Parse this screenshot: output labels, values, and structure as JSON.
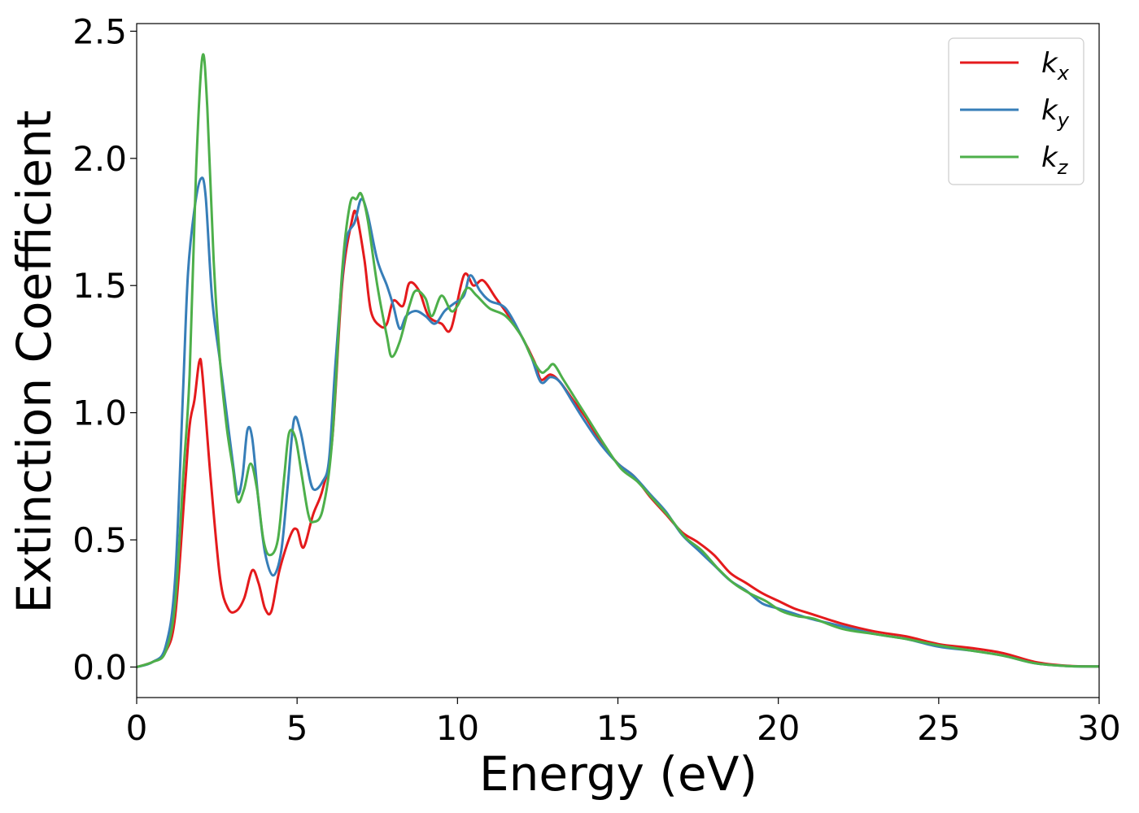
{
  "chart_data": {
    "type": "line",
    "xlabel": "Energy (eV)",
    "ylabel": "Extinction Coefficient",
    "xlim": [
      0,
      30
    ],
    "ylim": [
      -0.12,
      2.53
    ],
    "xticks": [
      0,
      5,
      10,
      15,
      20,
      25,
      30
    ],
    "yticks": [
      0.0,
      0.5,
      1.0,
      1.5,
      2.0,
      2.5
    ],
    "xtick_labels": [
      "0",
      "5",
      "10",
      "15",
      "20",
      "25",
      "30"
    ],
    "ytick_labels": [
      "0.0",
      "0.5",
      "1.0",
      "1.5",
      "2.0",
      "2.5"
    ],
    "grid": false,
    "legend_position": "top-right",
    "series": [
      {
        "name": "k_x",
        "label_main": "k",
        "label_sub": "x",
        "color": "#e41a1c",
        "points": [
          [
            0,
            0
          ],
          [
            0.5,
            0.02
          ],
          [
            0.9,
            0.06
          ],
          [
            1.2,
            0.2
          ],
          [
            1.5,
            0.7
          ],
          [
            1.65,
            0.95
          ],
          [
            1.8,
            1.05
          ],
          [
            1.95,
            1.2
          ],
          [
            2.05,
            1.15
          ],
          [
            2.3,
            0.75
          ],
          [
            2.6,
            0.35
          ],
          [
            2.85,
            0.23
          ],
          [
            3.1,
            0.22
          ],
          [
            3.35,
            0.27
          ],
          [
            3.6,
            0.38
          ],
          [
            3.8,
            0.33
          ],
          [
            4.0,
            0.23
          ],
          [
            4.2,
            0.22
          ],
          [
            4.45,
            0.38
          ],
          [
            4.8,
            0.52
          ],
          [
            5.0,
            0.54
          ],
          [
            5.2,
            0.47
          ],
          [
            5.5,
            0.6
          ],
          [
            5.8,
            0.7
          ],
          [
            6.1,
            0.9
          ],
          [
            6.4,
            1.5
          ],
          [
            6.7,
            1.75
          ],
          [
            6.85,
            1.78
          ],
          [
            7.1,
            1.6
          ],
          [
            7.3,
            1.4
          ],
          [
            7.6,
            1.34
          ],
          [
            7.8,
            1.35
          ],
          [
            8.0,
            1.44
          ],
          [
            8.3,
            1.42
          ],
          [
            8.5,
            1.51
          ],
          [
            8.8,
            1.48
          ],
          [
            9.1,
            1.38
          ],
          [
            9.5,
            1.35
          ],
          [
            9.8,
            1.33
          ],
          [
            10.2,
            1.54
          ],
          [
            10.5,
            1.5
          ],
          [
            10.8,
            1.52
          ],
          [
            11.2,
            1.45
          ],
          [
            11.6,
            1.38
          ],
          [
            12.0,
            1.3
          ],
          [
            12.4,
            1.2
          ],
          [
            12.6,
            1.13
          ],
          [
            12.9,
            1.15
          ],
          [
            13.2,
            1.12
          ],
          [
            13.6,
            1.05
          ],
          [
            14.0,
            0.98
          ],
          [
            14.5,
            0.88
          ],
          [
            15.0,
            0.8
          ],
          [
            15.5,
            0.75
          ],
          [
            16.0,
            0.67
          ],
          [
            16.5,
            0.6
          ],
          [
            17.0,
            0.53
          ],
          [
            17.5,
            0.49
          ],
          [
            18.0,
            0.44
          ],
          [
            18.5,
            0.37
          ],
          [
            19.0,
            0.33
          ],
          [
            19.5,
            0.29
          ],
          [
            20.0,
            0.26
          ],
          [
            20.5,
            0.23
          ],
          [
            21.0,
            0.21
          ],
          [
            22.0,
            0.17
          ],
          [
            23.0,
            0.14
          ],
          [
            24.0,
            0.12
          ],
          [
            25.0,
            0.09
          ],
          [
            26.0,
            0.075
          ],
          [
            27.0,
            0.055
          ],
          [
            28.0,
            0.02
          ],
          [
            29.0,
            0.005
          ],
          [
            30.0,
            0.002
          ]
        ]
      },
      {
        "name": "k_y",
        "label_main": "k",
        "label_sub": "y",
        "color": "#377eb8",
        "points": [
          [
            0,
            0
          ],
          [
            0.5,
            0.02
          ],
          [
            0.9,
            0.08
          ],
          [
            1.2,
            0.35
          ],
          [
            1.45,
            1.1
          ],
          [
            1.6,
            1.55
          ],
          [
            1.8,
            1.8
          ],
          [
            2.0,
            1.92
          ],
          [
            2.15,
            1.85
          ],
          [
            2.35,
            1.45
          ],
          [
            2.6,
            1.2
          ],
          [
            2.8,
            1.0
          ],
          [
            3.0,
            0.8
          ],
          [
            3.15,
            0.68
          ],
          [
            3.3,
            0.75
          ],
          [
            3.45,
            0.93
          ],
          [
            3.6,
            0.9
          ],
          [
            3.8,
            0.65
          ],
          [
            4.0,
            0.45
          ],
          [
            4.25,
            0.36
          ],
          [
            4.5,
            0.45
          ],
          [
            4.7,
            0.7
          ],
          [
            4.9,
            0.97
          ],
          [
            5.1,
            0.93
          ],
          [
            5.3,
            0.8
          ],
          [
            5.5,
            0.7
          ],
          [
            5.8,
            0.73
          ],
          [
            6.0,
            0.82
          ],
          [
            6.2,
            1.2
          ],
          [
            6.5,
            1.65
          ],
          [
            6.8,
            1.75
          ],
          [
            7.0,
            1.84
          ],
          [
            7.2,
            1.78
          ],
          [
            7.5,
            1.6
          ],
          [
            7.8,
            1.5
          ],
          [
            8.0,
            1.42
          ],
          [
            8.2,
            1.33
          ],
          [
            8.4,
            1.38
          ],
          [
            8.7,
            1.4
          ],
          [
            9.0,
            1.38
          ],
          [
            9.3,
            1.35
          ],
          [
            9.6,
            1.4
          ],
          [
            9.9,
            1.43
          ],
          [
            10.2,
            1.46
          ],
          [
            10.4,
            1.54
          ],
          [
            10.7,
            1.48
          ],
          [
            11.0,
            1.44
          ],
          [
            11.5,
            1.41
          ],
          [
            12.0,
            1.3
          ],
          [
            12.3,
            1.22
          ],
          [
            12.6,
            1.12
          ],
          [
            12.9,
            1.14
          ],
          [
            13.2,
            1.12
          ],
          [
            13.6,
            1.04
          ],
          [
            14.0,
            0.96
          ],
          [
            14.5,
            0.87
          ],
          [
            15.0,
            0.8
          ],
          [
            15.5,
            0.75
          ],
          [
            16.0,
            0.68
          ],
          [
            16.5,
            0.61
          ],
          [
            17.0,
            0.52
          ],
          [
            17.5,
            0.46
          ],
          [
            18.0,
            0.4
          ],
          [
            18.5,
            0.34
          ],
          [
            19.0,
            0.3
          ],
          [
            19.5,
            0.25
          ],
          [
            20.0,
            0.23
          ],
          [
            20.5,
            0.21
          ],
          [
            21.0,
            0.19
          ],
          [
            22.0,
            0.16
          ],
          [
            23.0,
            0.13
          ],
          [
            24.0,
            0.11
          ],
          [
            25.0,
            0.08
          ],
          [
            26.0,
            0.065
          ],
          [
            27.0,
            0.045
          ],
          [
            28.0,
            0.015
          ],
          [
            29.0,
            0.004
          ],
          [
            30.0,
            0.002
          ]
        ]
      },
      {
        "name": "k_z",
        "label_main": "k",
        "label_sub": "z",
        "color": "#4daf4a",
        "points": [
          [
            0,
            0
          ],
          [
            0.5,
            0.02
          ],
          [
            0.9,
            0.06
          ],
          [
            1.2,
            0.25
          ],
          [
            1.45,
            0.75
          ],
          [
            1.65,
            1.15
          ],
          [
            1.85,
            1.95
          ],
          [
            2.05,
            2.4
          ],
          [
            2.2,
            2.2
          ],
          [
            2.4,
            1.6
          ],
          [
            2.6,
            1.2
          ],
          [
            2.8,
            0.95
          ],
          [
            3.0,
            0.78
          ],
          [
            3.15,
            0.65
          ],
          [
            3.35,
            0.7
          ],
          [
            3.55,
            0.8
          ],
          [
            3.75,
            0.7
          ],
          [
            3.95,
            0.5
          ],
          [
            4.15,
            0.44
          ],
          [
            4.4,
            0.5
          ],
          [
            4.6,
            0.75
          ],
          [
            4.75,
            0.92
          ],
          [
            4.95,
            0.9
          ],
          [
            5.15,
            0.75
          ],
          [
            5.35,
            0.6
          ],
          [
            5.5,
            0.57
          ],
          [
            5.8,
            0.62
          ],
          [
            6.1,
            0.9
          ],
          [
            6.4,
            1.55
          ],
          [
            6.65,
            1.82
          ],
          [
            6.85,
            1.84
          ],
          [
            7.0,
            1.86
          ],
          [
            7.2,
            1.76
          ],
          [
            7.5,
            1.5
          ],
          [
            7.8,
            1.3
          ],
          [
            7.95,
            1.22
          ],
          [
            8.2,
            1.28
          ],
          [
            8.5,
            1.42
          ],
          [
            8.7,
            1.48
          ],
          [
            9.0,
            1.45
          ],
          [
            9.2,
            1.38
          ],
          [
            9.5,
            1.46
          ],
          [
            9.8,
            1.4
          ],
          [
            10.0,
            1.42
          ],
          [
            10.3,
            1.49
          ],
          [
            10.6,
            1.46
          ],
          [
            11.0,
            1.41
          ],
          [
            11.5,
            1.38
          ],
          [
            12.0,
            1.3
          ],
          [
            12.3,
            1.22
          ],
          [
            12.6,
            1.16
          ],
          [
            12.8,
            1.17
          ],
          [
            13.0,
            1.19
          ],
          [
            13.3,
            1.13
          ],
          [
            13.7,
            1.05
          ],
          [
            14.1,
            0.97
          ],
          [
            14.6,
            0.87
          ],
          [
            15.1,
            0.78
          ],
          [
            15.6,
            0.73
          ],
          [
            16.1,
            0.66
          ],
          [
            16.6,
            0.59
          ],
          [
            17.1,
            0.51
          ],
          [
            17.6,
            0.46
          ],
          [
            18.1,
            0.39
          ],
          [
            18.6,
            0.33
          ],
          [
            19.1,
            0.29
          ],
          [
            19.6,
            0.26
          ],
          [
            20.1,
            0.22
          ],
          [
            20.6,
            0.2
          ],
          [
            21.1,
            0.19
          ],
          [
            22.0,
            0.15
          ],
          [
            23.0,
            0.13
          ],
          [
            24.0,
            0.11
          ],
          [
            25.0,
            0.085
          ],
          [
            26.0,
            0.065
          ],
          [
            27.0,
            0.045
          ],
          [
            28.0,
            0.015
          ],
          [
            29.0,
            0.004
          ],
          [
            30.0,
            0.002
          ]
        ]
      }
    ]
  }
}
